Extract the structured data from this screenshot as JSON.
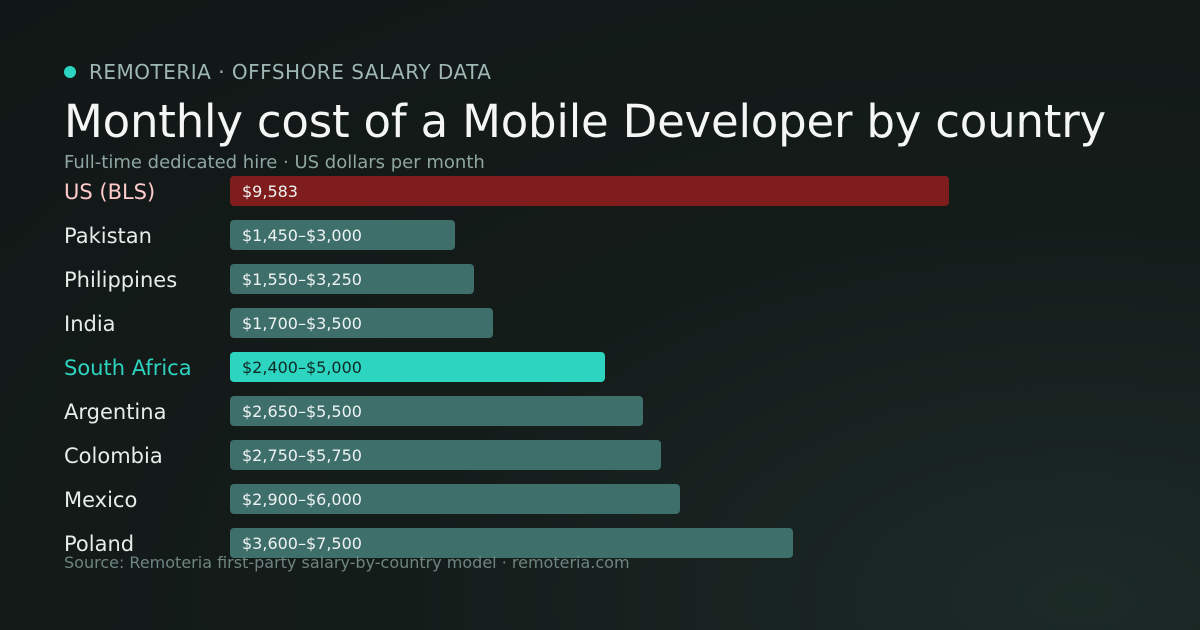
{
  "header": {
    "brand": "REMOTERIA · OFFSHORE SALARY DATA",
    "title": "Monthly cost of a Mobile Developer by country",
    "subtitle": "Full-time dedicated hire · US dollars per month"
  },
  "footer": {
    "source": "Source: Remoteria first-party salary-by-country model · remoteria.com"
  },
  "colors": {
    "accent": "#2dd4bf",
    "baseline": "#7f1d1d",
    "default_bar": "#3f6f6a",
    "highlight_label": "#2dd4bf",
    "baseline_label": "#fecaca"
  },
  "chart_data": {
    "type": "bar",
    "orientation": "horizontal",
    "title": "Monthly cost of a Mobile Developer by country",
    "subtitle": "Full-time dedicated hire · US dollars per month",
    "xlim": [
      0,
      10000
    ],
    "grid": false,
    "legend": "none",
    "rows": [
      {
        "label": "US (BLS)",
        "value_label": "$9,583",
        "min": 9583,
        "max": 9583,
        "style": "baseline"
      },
      {
        "label": "Pakistan",
        "value_label": "$1,450–$3,000",
        "min": 1450,
        "max": 3000,
        "style": "default"
      },
      {
        "label": "Philippines",
        "value_label": "$1,550–$3,250",
        "min": 1550,
        "max": 3250,
        "style": "default"
      },
      {
        "label": "India",
        "value_label": "$1,700–$3,500",
        "min": 1700,
        "max": 3500,
        "style": "default"
      },
      {
        "label": "South Africa",
        "value_label": "$2,400–$5,000",
        "min": 2400,
        "max": 5000,
        "style": "highlight"
      },
      {
        "label": "Argentina",
        "value_label": "$2,650–$5,500",
        "min": 2650,
        "max": 5500,
        "style": "default"
      },
      {
        "label": "Colombia",
        "value_label": "$2,750–$5,750",
        "min": 2750,
        "max": 5750,
        "style": "default"
      },
      {
        "label": "Mexico",
        "value_label": "$2,900–$6,000",
        "min": 2900,
        "max": 6000,
        "style": "default"
      },
      {
        "label": "Poland",
        "value_label": "$3,600–$7,500",
        "min": 3600,
        "max": 7500,
        "style": "default"
      }
    ]
  }
}
